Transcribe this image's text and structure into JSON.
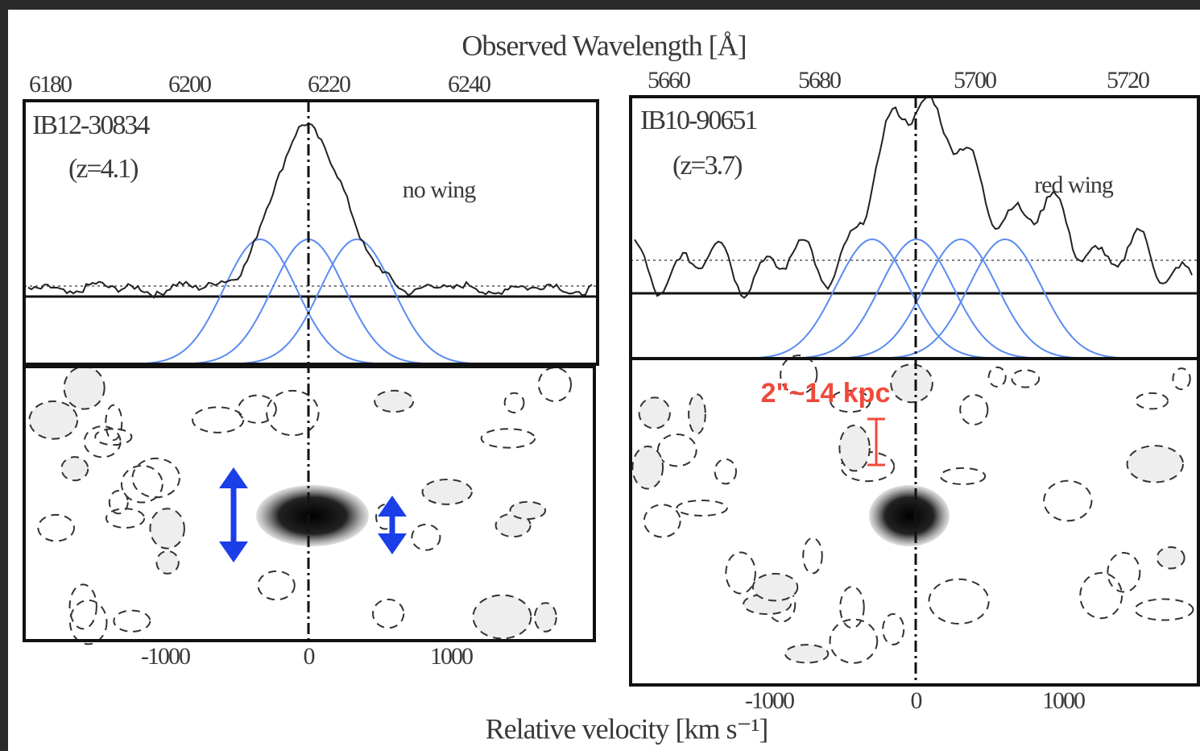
{
  "figure": {
    "top_axis_title": "Observed Wavelength [Å]",
    "bottom_axis_title": "Relative velocity [km s⁻¹]",
    "panels": [
      {
        "name": "IB12-30834",
        "redshift": "(z=4.1)",
        "wing": "no wing",
        "top_ticks": [
          6180,
          6200,
          6220,
          6240
        ],
        "bottom_ticks": [
          -1000,
          0,
          1000
        ]
      },
      {
        "name": "IB10-90651",
        "redshift": "(z=3.7)",
        "wing": "red wing",
        "top_ticks": [
          5660,
          5680,
          5700,
          5720
        ],
        "bottom_ticks": [
          -1000,
          0,
          1000
        ],
        "scale_label": "2\"~14 kpc"
      }
    ]
  }
}
